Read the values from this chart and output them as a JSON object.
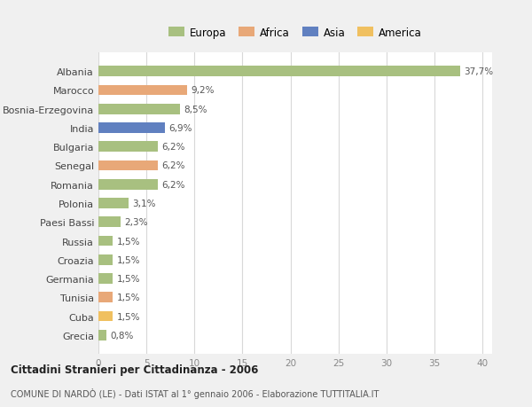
{
  "countries": [
    "Albania",
    "Marocco",
    "Bosnia-Erzegovina",
    "India",
    "Bulgaria",
    "Senegal",
    "Romania",
    "Polonia",
    "Paesi Bassi",
    "Russia",
    "Croazia",
    "Germania",
    "Tunisia",
    "Cuba",
    "Grecia"
  ],
  "values": [
    37.7,
    9.2,
    8.5,
    6.9,
    6.2,
    6.2,
    6.2,
    3.1,
    2.3,
    1.5,
    1.5,
    1.5,
    1.5,
    1.5,
    0.8
  ],
  "labels": [
    "37,7%",
    "9,2%",
    "8,5%",
    "6,9%",
    "6,2%",
    "6,2%",
    "6,2%",
    "3,1%",
    "2,3%",
    "1,5%",
    "1,5%",
    "1,5%",
    "1,5%",
    "1,5%",
    "0,8%"
  ],
  "colors": [
    "#a8c080",
    "#e8a878",
    "#a8c080",
    "#6080c0",
    "#a8c080",
    "#e8a878",
    "#a8c080",
    "#a8c080",
    "#a8c080",
    "#a8c080",
    "#a8c080",
    "#a8c080",
    "#e8a878",
    "#f0c060",
    "#a8c080"
  ],
  "legend_labels": [
    "Europa",
    "Africa",
    "Asia",
    "America"
  ],
  "legend_colors": [
    "#a8c080",
    "#e8a878",
    "#6080c0",
    "#f0c060"
  ],
  "title": "Cittadini Stranieri per Cittadinanza - 2006",
  "subtitle": "COMUNE DI NARDÒ (LE) - Dati ISTAT al 1° gennaio 2006 - Elaborazione TUTTITALIA.IT",
  "xlim": [
    0,
    41
  ],
  "xticks": [
    0,
    5,
    10,
    15,
    20,
    25,
    30,
    35,
    40
  ],
  "bg_color": "#f0f0f0",
  "bar_bg_color": "#ffffff",
  "grid_color": "#d8d8d8"
}
